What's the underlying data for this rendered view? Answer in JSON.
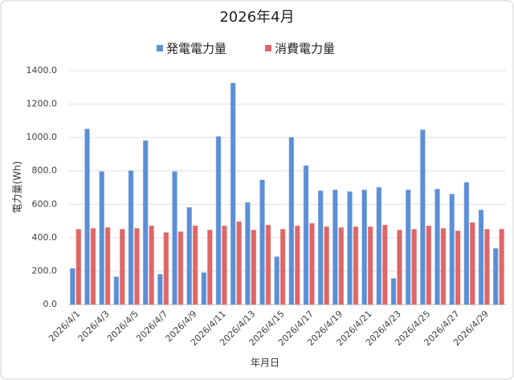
{
  "chart_data": {
    "type": "bar",
    "title": "2026年4月",
    "x_label": "年月日",
    "y_label": "電力量(Wh)",
    "categories": [
      "2026/4/1",
      null,
      "2026/4/3",
      null,
      "2026/4/5",
      null,
      "2026/4/7",
      null,
      "2026/4/9",
      null,
      "2026/4/11",
      null,
      "2026/4/13",
      null,
      "2026/4/15",
      null,
      "2026/4/17",
      null,
      "2026/4/19",
      null,
      "2026/4/21",
      null,
      "2026/4/23",
      null,
      "2026/4/25",
      null,
      "2026/4/27",
      null,
      "2026/4/29",
      null
    ],
    "series": [
      {
        "name": "発電電力量",
        "color": "#5b8fd6",
        "values": [
          215,
          1050,
          795,
          165,
          800,
          980,
          180,
          795,
          580,
          190,
          1005,
          1325,
          610,
          745,
          285,
          1000,
          830,
          680,
          685,
          675,
          685,
          700,
          155,
          685,
          1045,
          690,
          660,
          730,
          565,
          335
        ]
      },
      {
        "name": "消費電力量",
        "color": "#e06666",
        "values": [
          450,
          455,
          460,
          450,
          455,
          470,
          430,
          435,
          470,
          445,
          470,
          495,
          445,
          475,
          450,
          470,
          485,
          465,
          460,
          465,
          465,
          475,
          445,
          450,
          470,
          455,
          440,
          490,
          450,
          450
        ]
      }
    ],
    "ylim": [
      0,
      1400
    ],
    "yticks": [
      {
        "value": 0,
        "label": "0.0"
      },
      {
        "value": 200,
        "label": "200.0"
      },
      {
        "value": 400,
        "label": "400.0"
      },
      {
        "value": 600,
        "label": "600.0"
      },
      {
        "value": 800,
        "label": "800.0"
      },
      {
        "value": 1000,
        "label": "1000.0"
      },
      {
        "value": 1200,
        "label": "1200.0"
      },
      {
        "value": 1400,
        "label": "1400.0"
      }
    ],
    "grid": true,
    "legend": "top"
  }
}
